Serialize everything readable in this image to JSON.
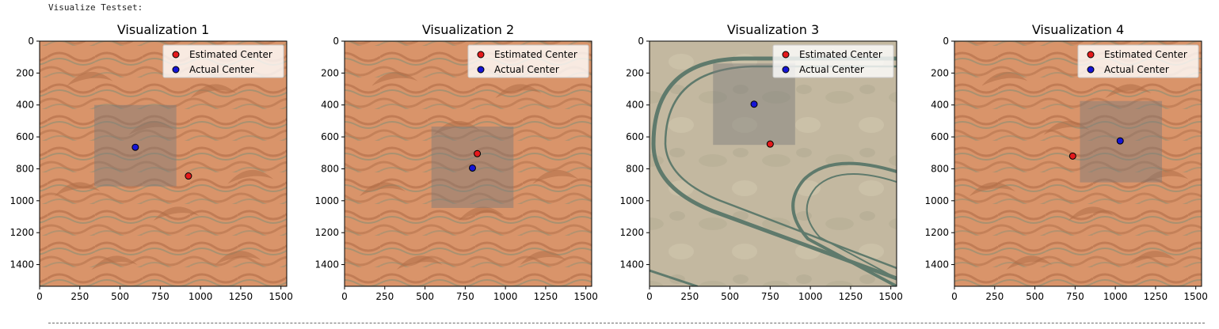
{
  "output_header": "Visualize Testset:",
  "colors": {
    "estimated": "#e41a1c",
    "actual": "#1515d6",
    "marker_edge": "#000000",
    "sand": "#d9946a",
    "sand_dark": "#b06d47",
    "gravel": "#6e8f77",
    "flat": "#c3b8a0",
    "track": "#5f7a6c"
  },
  "chart_data": [
    {
      "type": "scatter",
      "title": "Visualization 1",
      "background": "sand-dunes",
      "xlim": [
        0,
        1536
      ],
      "ylim": [
        1536,
        0
      ],
      "xticks": [
        0,
        250,
        500,
        750,
        1000,
        1250,
        1500
      ],
      "yticks": [
        0,
        200,
        400,
        600,
        800,
        1000,
        1200,
        1400
      ],
      "patch": {
        "x0": 340,
        "y0": 400,
        "x1": 850,
        "y1": 910
      },
      "legend": {
        "position": "top-right",
        "entries": [
          "Estimated Center",
          "Actual Center"
        ]
      },
      "series": [
        {
          "name": "Estimated Center",
          "x": [
            925
          ],
          "y": [
            845
          ],
          "color": "red"
        },
        {
          "name": "Actual Center",
          "x": [
            595
          ],
          "y": [
            665
          ],
          "color": "blue"
        }
      ]
    },
    {
      "type": "scatter",
      "title": "Visualization 2",
      "background": "sand-dunes",
      "xlim": [
        0,
        1536
      ],
      "ylim": [
        1536,
        0
      ],
      "xticks": [
        0,
        250,
        500,
        750,
        1000,
        1250,
        1500
      ],
      "yticks": [
        0,
        200,
        400,
        600,
        800,
        1000,
        1200,
        1400
      ],
      "patch": {
        "x0": 540,
        "y0": 535,
        "x1": 1050,
        "y1": 1045
      },
      "legend": {
        "position": "top-right",
        "entries": [
          "Estimated Center",
          "Actual Center"
        ]
      },
      "series": [
        {
          "name": "Estimated Center",
          "x": [
            825
          ],
          "y": [
            705
          ],
          "color": "red"
        },
        {
          "name": "Actual Center",
          "x": [
            795
          ],
          "y": [
            795
          ],
          "color": "blue"
        }
      ]
    },
    {
      "type": "scatter",
      "title": "Visualization 3",
      "background": "test-track",
      "xlim": [
        0,
        1536
      ],
      "ylim": [
        1536,
        0
      ],
      "xticks": [
        0,
        250,
        500,
        750,
        1000,
        1250,
        1500
      ],
      "yticks": [
        0,
        200,
        400,
        600,
        800,
        1000,
        1200,
        1400
      ],
      "patch": {
        "x0": 395,
        "y0": 140,
        "x1": 905,
        "y1": 650
      },
      "legend": {
        "position": "top-right",
        "entries": [
          "Estimated Center",
          "Actual Center"
        ]
      },
      "series": [
        {
          "name": "Estimated Center",
          "x": [
            750
          ],
          "y": [
            645
          ],
          "color": "red"
        },
        {
          "name": "Actual Center",
          "x": [
            650
          ],
          "y": [
            395
          ],
          "color": "blue"
        }
      ]
    },
    {
      "type": "scatter",
      "title": "Visualization 4",
      "background": "sand-dunes",
      "xlim": [
        0,
        1536
      ],
      "ylim": [
        1536,
        0
      ],
      "xticks": [
        0,
        250,
        500,
        750,
        1000,
        1250,
        1500
      ],
      "yticks": [
        0,
        200,
        400,
        600,
        800,
        1000,
        1200,
        1400
      ],
      "patch": {
        "x0": 780,
        "y0": 375,
        "x1": 1290,
        "y1": 885
      },
      "legend": {
        "position": "top-right",
        "entries": [
          "Estimated Center",
          "Actual Center"
        ]
      },
      "series": [
        {
          "name": "Estimated Center",
          "x": [
            735
          ],
          "y": [
            720
          ],
          "color": "red"
        },
        {
          "name": "Actual Center",
          "x": [
            1030
          ],
          "y": [
            625
          ],
          "color": "blue"
        }
      ]
    }
  ]
}
